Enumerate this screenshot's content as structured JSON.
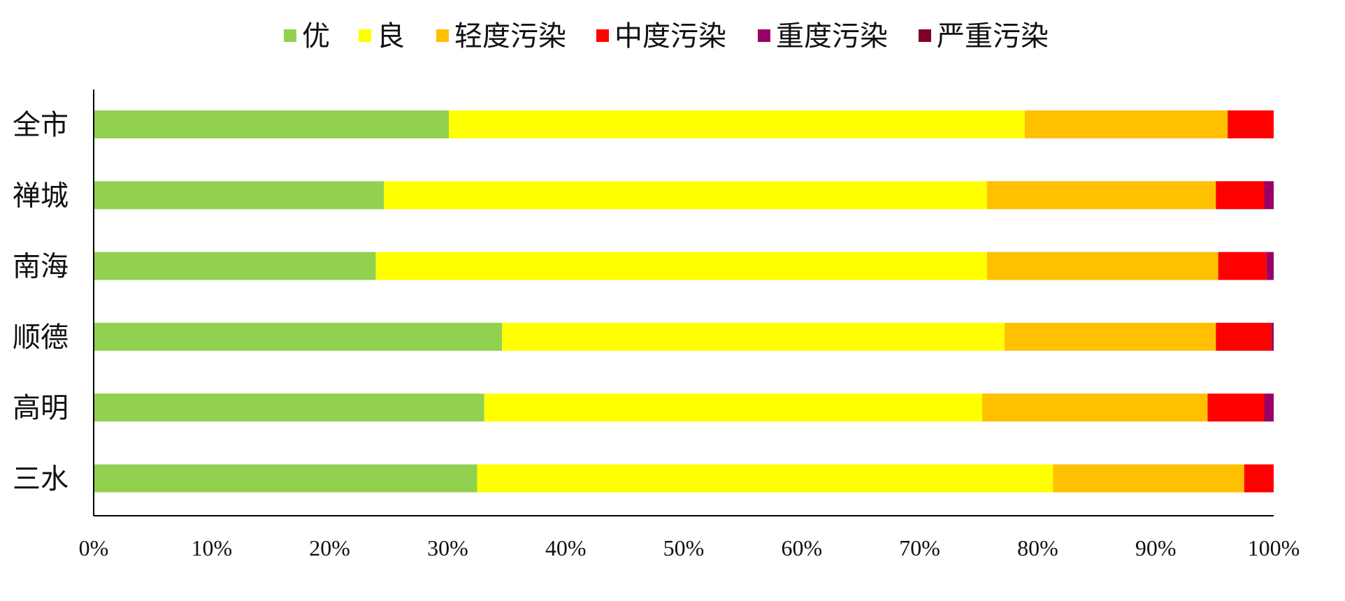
{
  "chart_data": {
    "type": "bar",
    "orientation": "horizontal",
    "stacked": "percent",
    "categories": [
      "全市",
      "禅城",
      "南海",
      "顺德",
      "高明",
      "三水"
    ],
    "series": [
      {
        "name": "优",
        "color": "#92D050",
        "values": [
          30.1,
          24.6,
          23.9,
          34.6,
          33.1,
          32.5
        ]
      },
      {
        "name": "良",
        "color": "#FFFF00",
        "values": [
          48.8,
          51.1,
          51.8,
          42.6,
          42.2,
          48.8
        ]
      },
      {
        "name": "轻度污染",
        "color": "#FFC000",
        "values": [
          17.2,
          19.4,
          19.6,
          17.9,
          19.1,
          16.2
        ]
      },
      {
        "name": "中度污染",
        "color": "#FF0000",
        "values": [
          3.9,
          4.1,
          4.1,
          4.7,
          4.8,
          2.5
        ]
      },
      {
        "name": "重度污染",
        "color": "#990066",
        "values": [
          0.0,
          0.8,
          0.6,
          0.2,
          0.8,
          0.0
        ]
      },
      {
        "name": "严重污染",
        "color": "#7F0025",
        "values": [
          0.0,
          0.0,
          0.0,
          0.0,
          0.0,
          0.0
        ]
      }
    ],
    "xlim": [
      0,
      100
    ],
    "x_ticks": [
      "0%",
      "10%",
      "20%",
      "30%",
      "40%",
      "50%",
      "60%",
      "70%",
      "80%",
      "90%",
      "100%"
    ],
    "grid": false,
    "legend_position": "top"
  }
}
